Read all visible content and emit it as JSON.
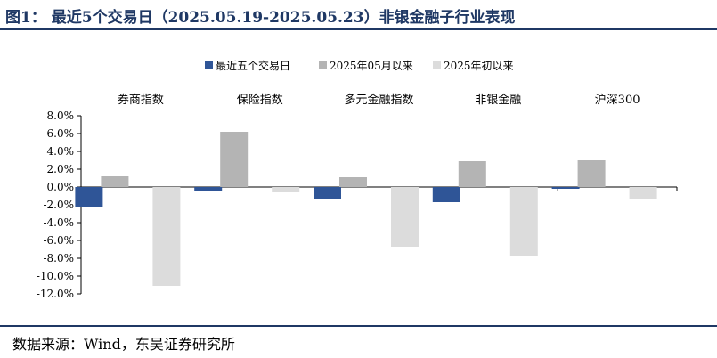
{
  "header": {
    "title": "图1：  最近5个交易日（2025.05.19-2025.05.23）非银金融子行业表现"
  },
  "footer": {
    "source": "数据来源：Wind，东吴证券研究所"
  },
  "colors": {
    "title": "#1f3864",
    "rule": "#1f3864"
  },
  "chart_data": {
    "type": "bar",
    "categories": [
      "券商指数",
      "保险指数",
      "多元金融指数",
      "非银金融",
      "沪深300"
    ],
    "series": [
      {
        "name": "最近五个交易日",
        "color": "#2f5597",
        "values": [
          -2.3,
          -0.5,
          -1.4,
          -1.7,
          -0.2
        ]
      },
      {
        "name": "2025年05月以来",
        "color": "#b4b4b4",
        "values": [
          1.2,
          6.2,
          1.1,
          2.9,
          3.0
        ]
      },
      {
        "name": "2025年初以来",
        "color": "#dcdcdc",
        "values": [
          -11.1,
          -0.6,
          -6.7,
          -7.7,
          -1.4
        ]
      }
    ],
    "ylim": [
      -12,
      8
    ],
    "yticks": [
      "8.0%",
      "6.0%",
      "4.0%",
      "2.0%",
      "0.0%",
      "-2.0%",
      "-4.0%",
      "-6.0%",
      "-8.0%",
      "-10.0%",
      "-12.0%"
    ],
    "legend_position": "top-center",
    "grid": false
  }
}
